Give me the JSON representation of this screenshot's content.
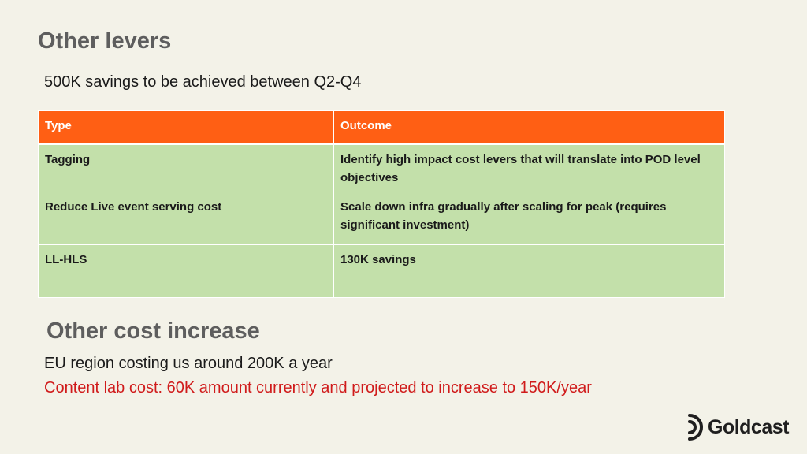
{
  "page": {
    "title": "Other levers",
    "subtitle": "500K savings to be achieved between Q2-Q4"
  },
  "table": {
    "headers": {
      "type": "Type",
      "outcome": "Outcome"
    },
    "rows": [
      {
        "type": "Tagging",
        "outcome": "Identify high impact cost levers that will translate into POD level objectives"
      },
      {
        "type": "Reduce Live event serving cost",
        "outcome": "Scale down infra gradually after scaling for peak (requires significant investment)"
      },
      {
        "type": "LL-HLS",
        "outcome": "130K savings"
      }
    ]
  },
  "cost_increase": {
    "title": "Other cost increase",
    "items": [
      "EU region costing us around 200K a year",
      "Content lab cost: 60K amount currently and projected to increase to 150K/year"
    ]
  },
  "logo": {
    "text": "Goldcast",
    "icon": "goldcast-logo-icon"
  },
  "colors": {
    "background": "#f3f2e8",
    "header_fill": "#ff5f14",
    "row_fill": "#c3e0aa",
    "title_text": "#5e5e5e",
    "highlight_text": "#d01b1b"
  }
}
